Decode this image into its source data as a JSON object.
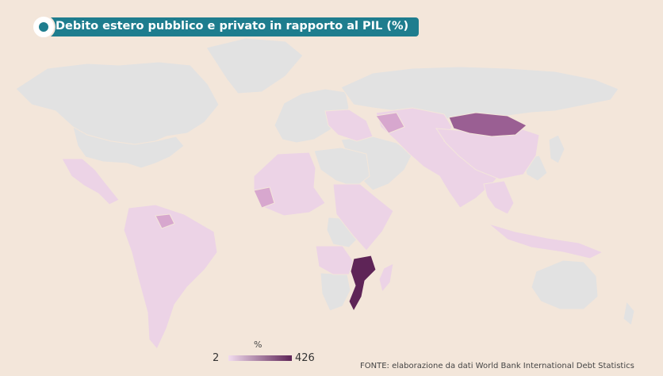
{
  "title": "Debito estero pubblico e privato in rapporto al PIL (%)",
  "legend": {
    "unit": "%",
    "min": "2",
    "max": "426",
    "color_low": "#f2dcee",
    "color_high": "#5e2457"
  },
  "source": "FONTE: elaborazione da dati World Bank International Debt Statistics",
  "colors": {
    "background": "#f3e6da",
    "no_data": "#e2e2e2",
    "title_bar": "#1e7d8e"
  },
  "chart_data": {
    "type": "choropleth",
    "value_range": [
      2,
      426
    ],
    "shaded_regions": [
      {
        "name": "Mozambico",
        "level": 1.0
      },
      {
        "name": "Mongolia",
        "level": 0.7
      },
      {
        "name": "America Latina",
        "level": 0.3
      },
      {
        "name": "Africa",
        "level": 0.25
      },
      {
        "name": "Asia centrale e meridionale",
        "level": 0.25
      }
    ]
  }
}
